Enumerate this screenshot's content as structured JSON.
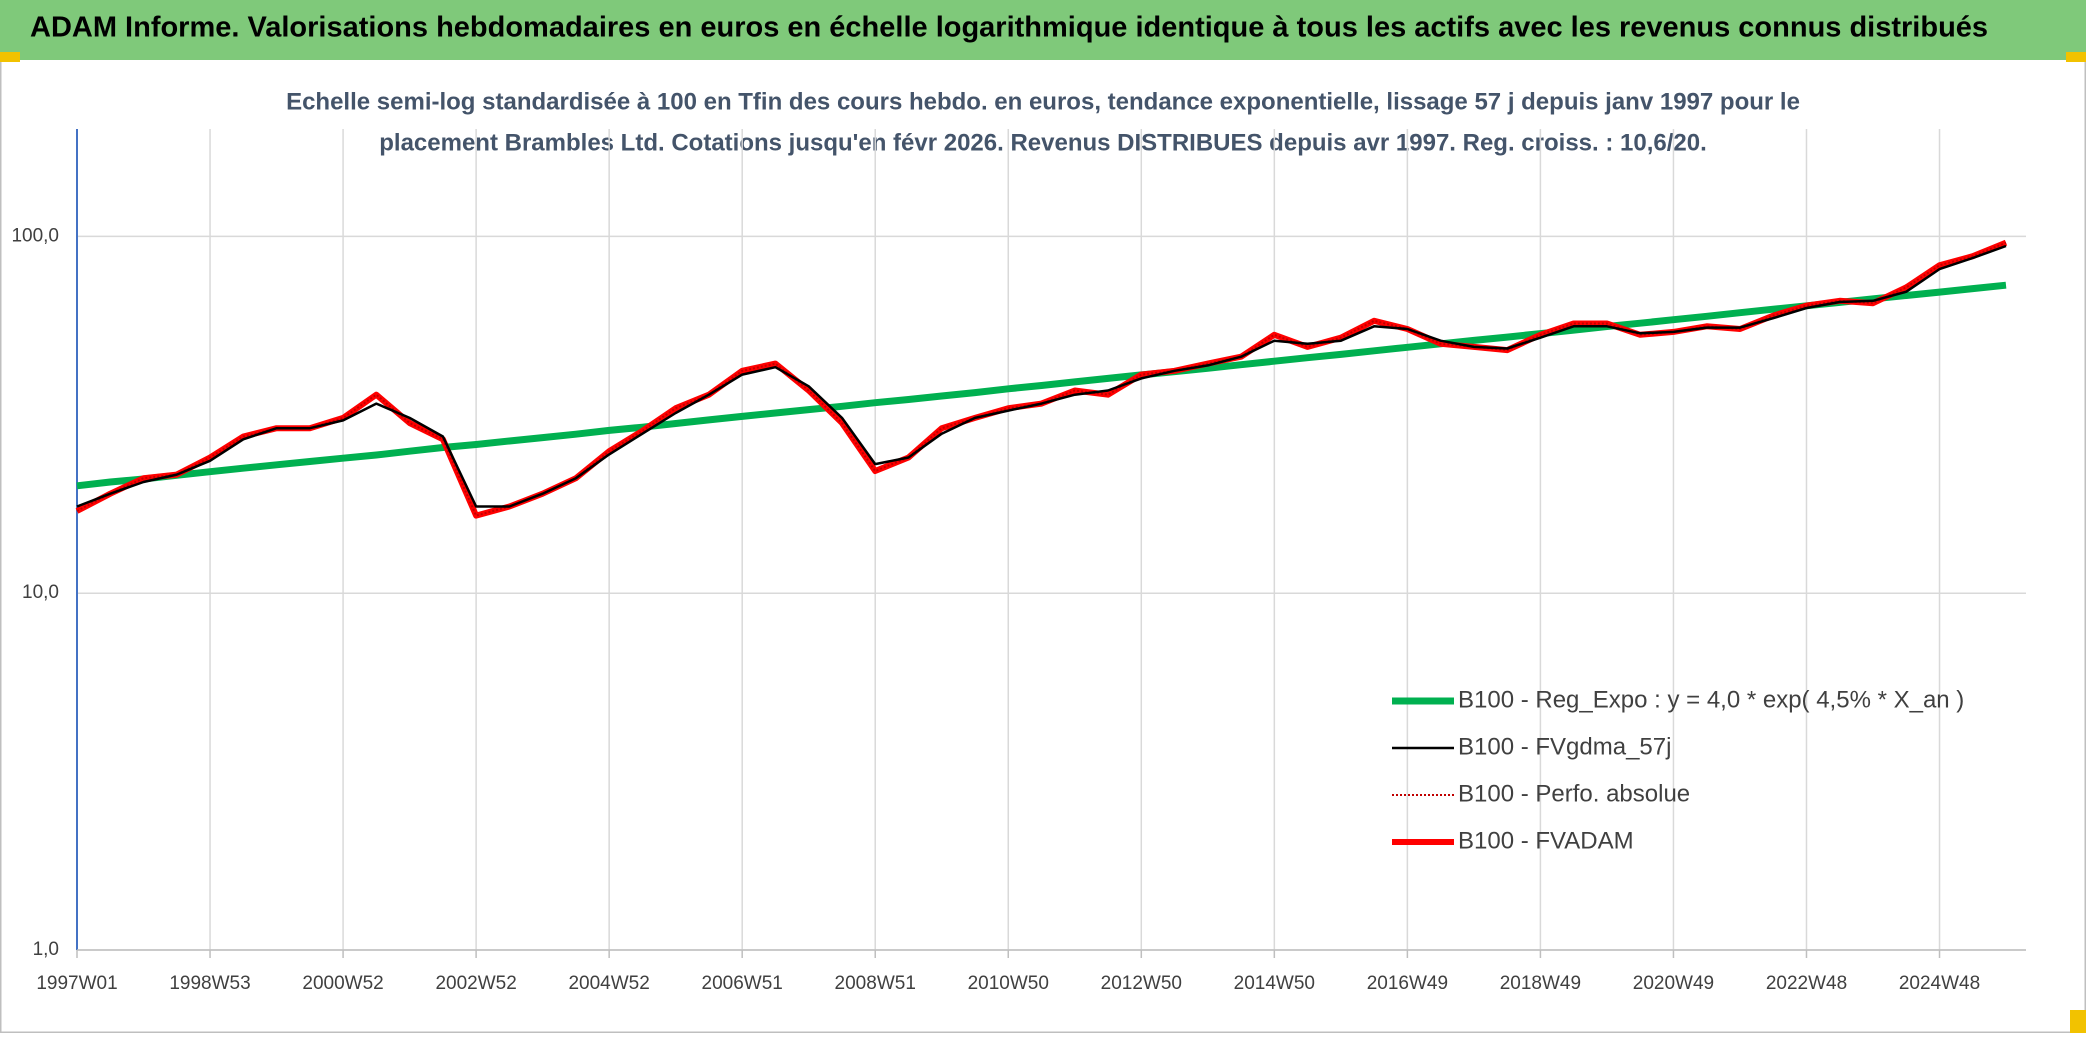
{
  "chart_data": {
    "type": "line",
    "title": "ADAM Informe. Valorisations hebdomadaires en euros en échelle logarithmique identique à tous les actifs avec les revenus connus distribués",
    "subtitle": [
      "Echelle semi-log standardisée à 100 en Tfin des cours hebdo. en euros, tendance exponentielle, lissage 57 j depuis janv 1997 pour le",
      "placement Brambles Ltd. Cotations jusqu'en févr 2026. Revenus DISTRIBUES depuis avr 1997. Reg. croiss. : 10,6/20."
    ],
    "categories": [
      "1997W01",
      null,
      null,
      null,
      "1998W53",
      null,
      null,
      null,
      "2000W52",
      null,
      null,
      null,
      "2002W52",
      null,
      null,
      null,
      "2004W52",
      null,
      null,
      null,
      "2006W51",
      null,
      null,
      null,
      "2008W51",
      null,
      null,
      null,
      "2010W50",
      null,
      null,
      null,
      "2012W50",
      null,
      null,
      null,
      "2014W50",
      null,
      null,
      null,
      "2016W49",
      null,
      null,
      null,
      "2018W49",
      null,
      null,
      null,
      "2020W49",
      null,
      null,
      null,
      "2022W48",
      null,
      null,
      null,
      "2024W48",
      null,
      null
    ],
    "series": [
      {
        "name": "B100 - Reg_Expo : y = 4,0 * exp( 4,5% *  X_an )",
        "color": "#00b050",
        "width": 7,
        "style": "solid",
        "values": [
          20.0,
          20.5,
          20.9,
          21.4,
          21.9,
          22.4,
          22.9,
          23.4,
          23.9,
          24.4,
          25.0,
          25.6,
          26.1,
          26.7,
          27.3,
          27.9,
          28.6,
          29.2,
          29.9,
          30.6,
          31.3,
          32.0,
          32.7,
          33.4,
          34.2,
          34.9,
          35.7,
          36.5,
          37.4,
          38.2,
          39.1,
          40.0,
          40.9,
          41.8,
          42.7,
          43.7,
          44.7,
          45.7,
          46.7,
          47.8,
          48.9,
          50.0,
          51.1,
          52.2,
          53.4,
          54.6,
          55.9,
          57.1,
          58.4,
          59.7,
          61.1,
          62.5,
          63.9,
          65.3,
          66.8,
          68.3,
          69.8,
          71.4,
          73.0
        ]
      },
      {
        "name": "B100 - FVgdma_57j",
        "color": "#000000",
        "width": 2.5,
        "style": "solid",
        "values": [
          17.5,
          19,
          20.5,
          21.5,
          23.5,
          27,
          29,
          29,
          30.5,
          34,
          31,
          27.5,
          17.5,
          17.5,
          19,
          21,
          24.5,
          28,
          32,
          36,
          41,
          43,
          38,
          31,
          23,
          24,
          28,
          31,
          32.5,
          34,
          36,
          37,
          40,
          42,
          43.5,
          46,
          51,
          50,
          51,
          56,
          55,
          51,
          49,
          48.5,
          52,
          56,
          56,
          53.5,
          54,
          55.5,
          55.5,
          59,
          63,
          65.5,
          66,
          70,
          81,
          87,
          94
        ]
      },
      {
        "name": "B100 - Perfo. absolue",
        "color": "#c00000",
        "width": 2,
        "style": "dotted",
        "values": [
          17,
          19,
          21,
          21.5,
          24,
          27.5,
          29,
          29,
          31,
          36,
          30,
          27,
          16.5,
          17.5,
          19,
          21,
          25,
          28.5,
          33,
          36,
          42,
          44,
          37,
          30,
          22,
          24,
          29,
          31,
          33,
          34,
          37,
          36,
          41,
          42,
          44,
          46,
          53,
          49,
          52,
          58,
          55,
          50,
          49,
          48,
          53,
          57,
          57,
          53,
          54,
          56,
          55,
          60,
          64,
          66,
          65,
          72,
          83,
          88,
          96
        ]
      },
      {
        "name": "B100 - FVADAM",
        "color": "#ff0000",
        "width": 6,
        "style": "solid",
        "values": [
          17,
          19,
          21,
          21.5,
          24,
          27.5,
          29,
          29,
          31,
          36,
          30,
          27,
          16.5,
          17.5,
          19,
          21,
          25,
          28.5,
          33,
          36,
          42,
          44,
          37,
          30,
          22,
          24,
          29,
          31,
          33,
          34,
          37,
          36,
          41,
          42,
          44,
          46,
          53,
          49,
          52,
          58,
          55,
          50,
          49,
          48,
          53,
          57,
          57,
          53,
          54,
          56,
          55,
          60,
          64,
          66,
          65,
          72,
          83,
          88,
          96
        ]
      }
    ],
    "log_scale": true,
    "ylim": [
      1,
      200
    ],
    "yticks": [
      {
        "value": 1,
        "label": "1,0"
      },
      {
        "value": 10,
        "label": "10,0"
      },
      {
        "value": 100,
        "label": "100,0"
      }
    ],
    "grid": true,
    "legend": "lower-right"
  }
}
